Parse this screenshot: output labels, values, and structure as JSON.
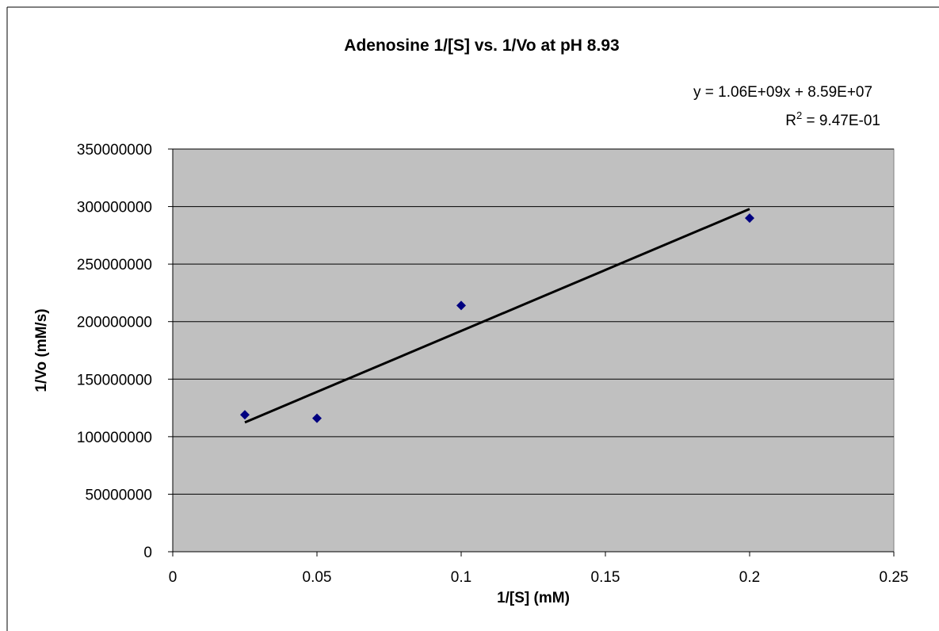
{
  "chart_data": {
    "type": "scatter",
    "title": "Adenosine 1/[S] vs. 1/Vo at pH 8.93",
    "xlabel": "1/[S] (mM)",
    "ylabel": "1/Vo (mM/s)",
    "xlim": [
      0,
      0.25
    ],
    "ylim": [
      0,
      350000000
    ],
    "x_ticks": [
      "0",
      "0.05",
      "0.1",
      "0.15",
      "0.2",
      "0.25"
    ],
    "y_ticks": [
      "0",
      "50000000",
      "100000000",
      "150000000",
      "200000000",
      "250000000",
      "300000000",
      "350000000"
    ],
    "grid": "horizontal",
    "legend": "none",
    "series": [
      {
        "x": [
          0.025,
          0.05,
          0.1,
          0.2
        ],
        "y": [
          119000000,
          116000000,
          214000000,
          290000000
        ],
        "marker": "diamond",
        "color": "#000080"
      }
    ],
    "trendline": {
      "type": "linear",
      "slope": 1060000000,
      "intercept": 85900000,
      "x_range": [
        0.025,
        0.2
      ],
      "equation_text": "y = 1.06E+09x + 8.59E+07",
      "r2_prefix": "R",
      "r2_sup": "2",
      "r2_suffix": " = 9.47E-01",
      "color": "#000000"
    },
    "plot_background": "#c0c0c0"
  }
}
